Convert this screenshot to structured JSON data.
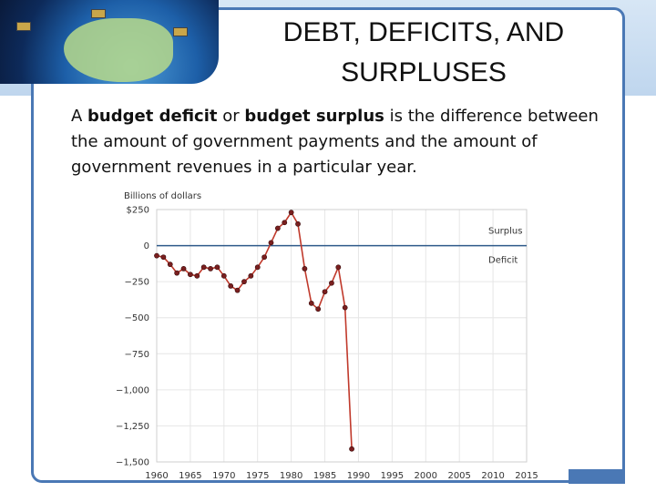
{
  "slide": {
    "title": "DEBT, DEFICITS, AND SURPLUSES",
    "body": {
      "part1": "A ",
      "term1": "budget deficit",
      "part2": " or ",
      "term2": "budget surplus",
      "part3": " is the difference between the amount of government payments and the amount of government revenues in a particular year."
    },
    "colors": {
      "frame": "#4a78b5",
      "series_line": "#c0392b",
      "marker": "#7a1f1f",
      "zero_line": "#2f5a8a"
    }
  },
  "chart_data": {
    "type": "line",
    "unit_label": "Billions of dollars",
    "xlim": [
      1960,
      2015
    ],
    "ylim": [
      -1500,
      250
    ],
    "x_ticks": [
      1960,
      1965,
      1970,
      1975,
      1980,
      1985,
      1990,
      1995,
      2000,
      2005,
      2010,
      2015
    ],
    "y_ticks": [
      250,
      0,
      -250,
      -500,
      -750,
      -1000,
      -1250,
      -1500
    ],
    "y_tick_labels": [
      "$250",
      "0",
      "−250",
      "−500",
      "−750",
      "−1,000",
      "−1,250",
      "−1,500"
    ],
    "x_tick_labels": [
      "1960",
      "1965",
      "1970",
      "1975",
      "1980",
      "1985",
      "1990",
      "1995",
      "2000",
      "2005",
      "2010",
      "2015"
    ],
    "annotations": {
      "surplus": "Surplus",
      "deficit": "Deficit"
    },
    "series": [
      {
        "x": [
          1960,
          1961,
          1962,
          1963,
          1964,
          1965,
          1966,
          1967,
          1968,
          1969,
          1970,
          1971,
          1972,
          1973,
          1974,
          1975,
          1976,
          1977,
          1978,
          1979,
          1980,
          1981,
          1982,
          1983,
          1984,
          1985,
          1986,
          1987,
          1988,
          1989
        ],
        "y": [
          -70,
          -80,
          -130,
          -190,
          -160,
          -200,
          -210,
          -150,
          -160,
          -150,
          -210,
          -280,
          -310,
          -250,
          -210,
          -150,
          -80,
          20,
          120,
          160,
          230,
          150,
          -160,
          -400,
          -440,
          -320,
          -260,
          -150,
          -430,
          -1410
        ],
        "x_years": [
          1960,
          1961,
          1962,
          1963,
          1964,
          1965,
          1966,
          1967,
          1968,
          1969,
          1970,
          1971,
          1972,
          1973,
          1974,
          1975,
          1976,
          1977,
          1978,
          1979,
          1980,
          1981,
          1982,
          1983,
          1984,
          1985,
          1986,
          1987,
          1988,
          1989
        ]
      }
    ]
  }
}
